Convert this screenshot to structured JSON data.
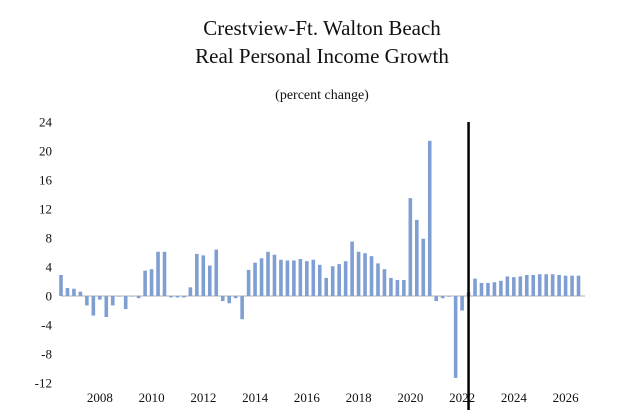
{
  "chart_data": {
    "type": "bar",
    "title": "Crestview-Ft. Walton Beach",
    "subtitle": "Real Personal Income Growth",
    "unit_note": "(percent change)",
    "ylim": [
      -12,
      24
    ],
    "yticks": [
      "24",
      "20",
      "16",
      "12",
      "8",
      "4",
      "0",
      "-4",
      "-8",
      "-12"
    ],
    "x_start": 2006.5,
    "x_end": 2026.75,
    "x_tick_labels": [
      "2008",
      "2010",
      "2012",
      "2014",
      "2016",
      "2018",
      "2020",
      "2022",
      "2024",
      "2026"
    ],
    "forecast_marker_x": 2022.25,
    "bar_color": "#7f9fd3",
    "marker_color": "#000000",
    "series": [
      {
        "x": [
          2006.5,
          2006.75,
          2007.0,
          2007.25,
          2007.5,
          2007.75,
          2008.0,
          2008.25,
          2008.5,
          2008.75,
          2009.0,
          2009.25,
          2009.5,
          2009.75,
          2010.0,
          2010.25,
          2010.5,
          2010.75,
          2011.0,
          2011.25,
          2011.5,
          2011.75,
          2012.0,
          2012.25,
          2012.5,
          2012.75,
          2013.0,
          2013.25,
          2013.5,
          2013.75,
          2014.0,
          2014.25,
          2014.5,
          2014.75,
          2015.0,
          2015.25,
          2015.5,
          2015.75,
          2016.0,
          2016.25,
          2016.5,
          2016.75,
          2017.0,
          2017.25,
          2017.5,
          2017.75,
          2018.0,
          2018.25,
          2018.5,
          2018.75,
          2019.0,
          2019.25,
          2019.5,
          2019.75,
          2020.0,
          2020.25,
          2020.5,
          2020.75,
          2021.0,
          2021.25,
          2021.5,
          2021.75,
          2022.0,
          2022.25,
          2022.5,
          2022.75,
          2023.0,
          2023.25,
          2023.5,
          2023.75,
          2024.0,
          2024.25,
          2024.5,
          2024.75,
          2025.0,
          2025.25,
          2025.5,
          2025.75,
          2026.0,
          2026.25,
          2026.5
        ],
        "values": [
          2.9,
          1.1,
          1.0,
          0.6,
          -1.3,
          -2.7,
          -0.5,
          -2.9,
          -1.3,
          0.0,
          -1.8,
          0.0,
          -0.3,
          3.5,
          3.7,
          6.1,
          6.1,
          -0.2,
          -0.2,
          -0.2,
          1.2,
          5.8,
          5.6,
          4.2,
          6.4,
          -0.7,
          -1.0,
          -0.3,
          -3.2,
          3.6,
          4.6,
          5.2,
          6.1,
          5.7,
          5.0,
          4.9,
          4.9,
          5.1,
          4.8,
          5.0,
          4.3,
          2.5,
          4.1,
          4.4,
          4.8,
          7.5,
          6.1,
          5.9,
          5.5,
          4.5,
          3.7,
          2.5,
          2.2,
          2.2,
          13.5,
          10.5,
          7.9,
          21.4,
          -0.7,
          -0.3,
          -0.1,
          -11.3,
          -2.0,
          0.5,
          2.4,
          1.8,
          1.8,
          1.9,
          2.1,
          2.7,
          2.6,
          2.7,
          2.9,
          2.9,
          3.0,
          3.0,
          3.0,
          2.9,
          2.8,
          2.8,
          2.8
        ]
      }
    ]
  }
}
